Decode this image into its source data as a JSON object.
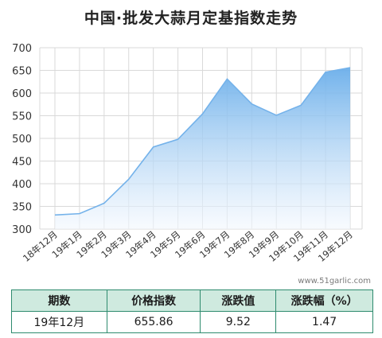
{
  "title": "中国·批发大蒜月定基指数走势",
  "watermark": "www.51garlic.com",
  "colors": {
    "line": "#74b2ea",
    "fill_top": "#6aaeea",
    "fill_bottom": "#f3f8fe",
    "grid": "#d9d9d9",
    "table_header_bg": "#cfeadf",
    "table_border": "#2e8b6e"
  },
  "chart_data": {
    "type": "area",
    "title": "中国·批发大蒜月定基指数走势",
    "categories": [
      "18年12月",
      "19年1月",
      "19年2月",
      "19年3月",
      "19年4月",
      "19年5月",
      "19年6月",
      "19年7月",
      "19年8月",
      "19年9月",
      "19年10月",
      "19年11月",
      "19年12月"
    ],
    "series": [
      {
        "values": [
          331,
          334,
          357,
          410,
          481,
          498,
          554,
          631,
          576,
          551,
          573,
          646,
          656
        ]
      }
    ],
    "yticks": [
      300,
      350,
      400,
      450,
      500,
      550,
      600,
      650,
      700
    ],
    "ylim": [
      300,
      700
    ],
    "grid": true
  },
  "table": {
    "headers": [
      "期数",
      "价格指数",
      "涨跌值",
      "涨跌幅（%）"
    ],
    "row": [
      "19年12月",
      "655.86",
      "9.52",
      "1.47"
    ]
  }
}
